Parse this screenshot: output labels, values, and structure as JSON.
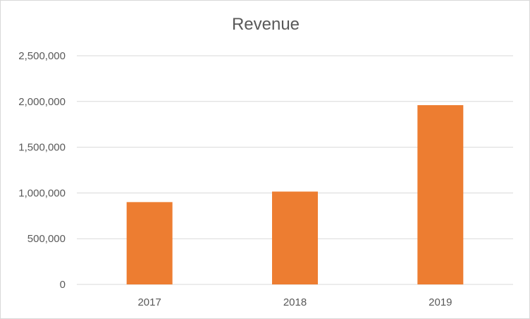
{
  "chart_data": {
    "type": "bar",
    "title": "Revenue",
    "categories": [
      "2017",
      "2018",
      "2019"
    ],
    "values": [
      900000,
      1015000,
      1960000
    ],
    "xlabel": "",
    "ylabel": "",
    "ylim": [
      0,
      2500000
    ],
    "yticks": [
      "0",
      "500,000",
      "1,000,000",
      "1,500,000",
      "2,000,000",
      "2,500,000"
    ],
    "ytick_values": [
      0,
      500000,
      1000000,
      1500000,
      2000000,
      2500000
    ],
    "grid": true,
    "legend": "none",
    "bar_color": "#ed7d31",
    "grid_color": "#d9d9d9"
  }
}
